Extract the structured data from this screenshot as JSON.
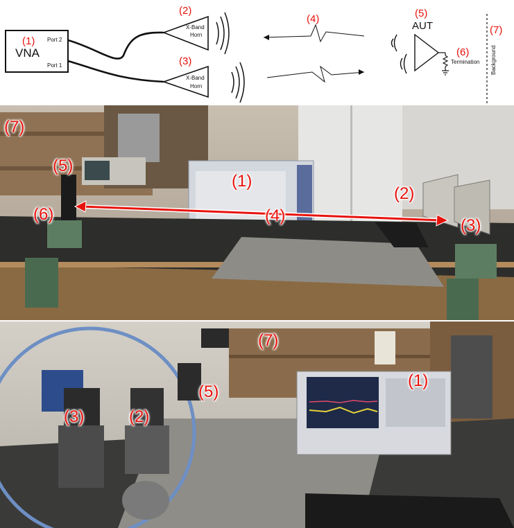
{
  "diagram": {
    "vna": {
      "num": "(1)",
      "label": "VNA",
      "port2": "Port 2",
      "port1": "Port 1"
    },
    "horn_rx": {
      "num": "(2)",
      "line1": "X-Band",
      "line2": "Horn"
    },
    "horn_tx": {
      "num": "(3)",
      "line1": "X-Band",
      "line2": "Horn"
    },
    "path": {
      "num": "(4)"
    },
    "aut": {
      "num": "(5)",
      "label": "AUT"
    },
    "termination": {
      "num": "(6)",
      "label": "Termination"
    },
    "background": {
      "num": "(7)",
      "label": "Background"
    }
  },
  "photo_top": {
    "labels": [
      "(7)",
      "(5)",
      "(6)",
      "(1)",
      "(4)",
      "(2)",
      "(3)"
    ]
  },
  "photo_bottom": {
    "labels": [
      "(7)",
      "(1)",
      "(5)",
      "(3)",
      "(2)"
    ]
  },
  "colors": {
    "annotation": "#e8120c",
    "arrow": "#e8120c"
  }
}
